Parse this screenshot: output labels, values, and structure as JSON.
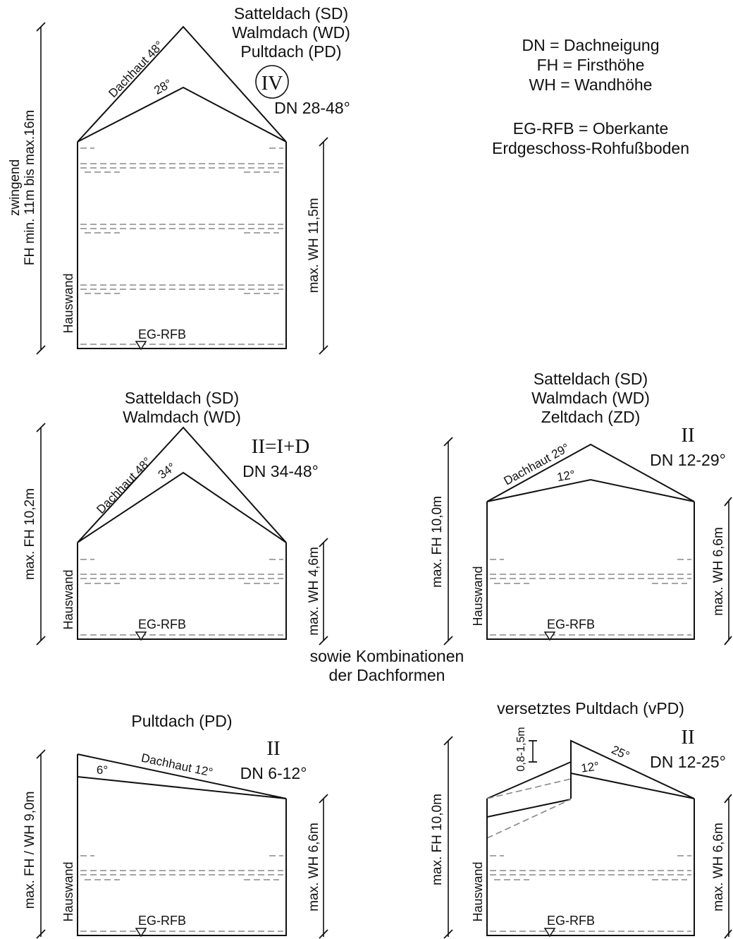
{
  "legend": {
    "line1": "DN  = Dachneigung",
    "line2": "FH  = Firsthöhe",
    "line3": "WH = Wandhöhe",
    "line4": "EG-RFB = Oberkante",
    "line5": "Erdgeschoss-Rohfußboden"
  },
  "combinations_note": {
    "line1": "sowie Kombinationen",
    "line2": "der Dachformen"
  },
  "common": {
    "wall_label": "Hauswand",
    "floor_label": "EG-RFB"
  },
  "house_iv": {
    "title1": "Satteldach (SD)",
    "title2": "Walmdach (WD)",
    "title3": "Pultdach (PD)",
    "storeys": "IV",
    "dn": "DN 28-48°",
    "roof_skin": "Dachhaut 48°",
    "inner_angle": "28°",
    "fh_label1": "zwingend",
    "fh_label2": "FH  min. 11m bis max.16m",
    "wh_label": "max. WH 11,5m"
  },
  "house_sd_wd": {
    "title1": "Satteldach (SD)",
    "title2": "Walmdach (WD)",
    "storeys": "II=I+D",
    "dn": "DN 34-48°",
    "roof_skin": "Dachhaut 48°",
    "inner_angle": "34°",
    "fh_label": "max. FH 10,2m",
    "wh_label": "max. WH 4,6m"
  },
  "house_sd_wd_zd": {
    "title1": "Satteldach (SD)",
    "title2": "Walmdach (WD)",
    "title3": "Zeltdach (ZD)",
    "storeys": "II",
    "dn": "DN 12-29°",
    "roof_skin": "Dachhaut 29°",
    "inner_angle": "12°",
    "fh_label": "max. FH 10,0m",
    "wh_label": "max. WH 6,6m"
  },
  "house_pd": {
    "title": "Pultdach (PD)",
    "storeys": "II",
    "dn": "DN 6-12°",
    "roof_skin": "Dachhaut 12°",
    "inner_angle": "6°",
    "fh_label": "max. FH / WH 9,0m",
    "wh_label": "max. WH 6,6m"
  },
  "house_vpd": {
    "title": "versetztes Pultdach (vPD)",
    "storeys": "II",
    "dn": "DN 12-25°",
    "angle_outer": "25°",
    "inner_angle": "12°",
    "offset_label": "0,8-1,5m",
    "fh_label": "max. FH 10,0m",
    "wh_label": "max. WH 6,6m"
  }
}
